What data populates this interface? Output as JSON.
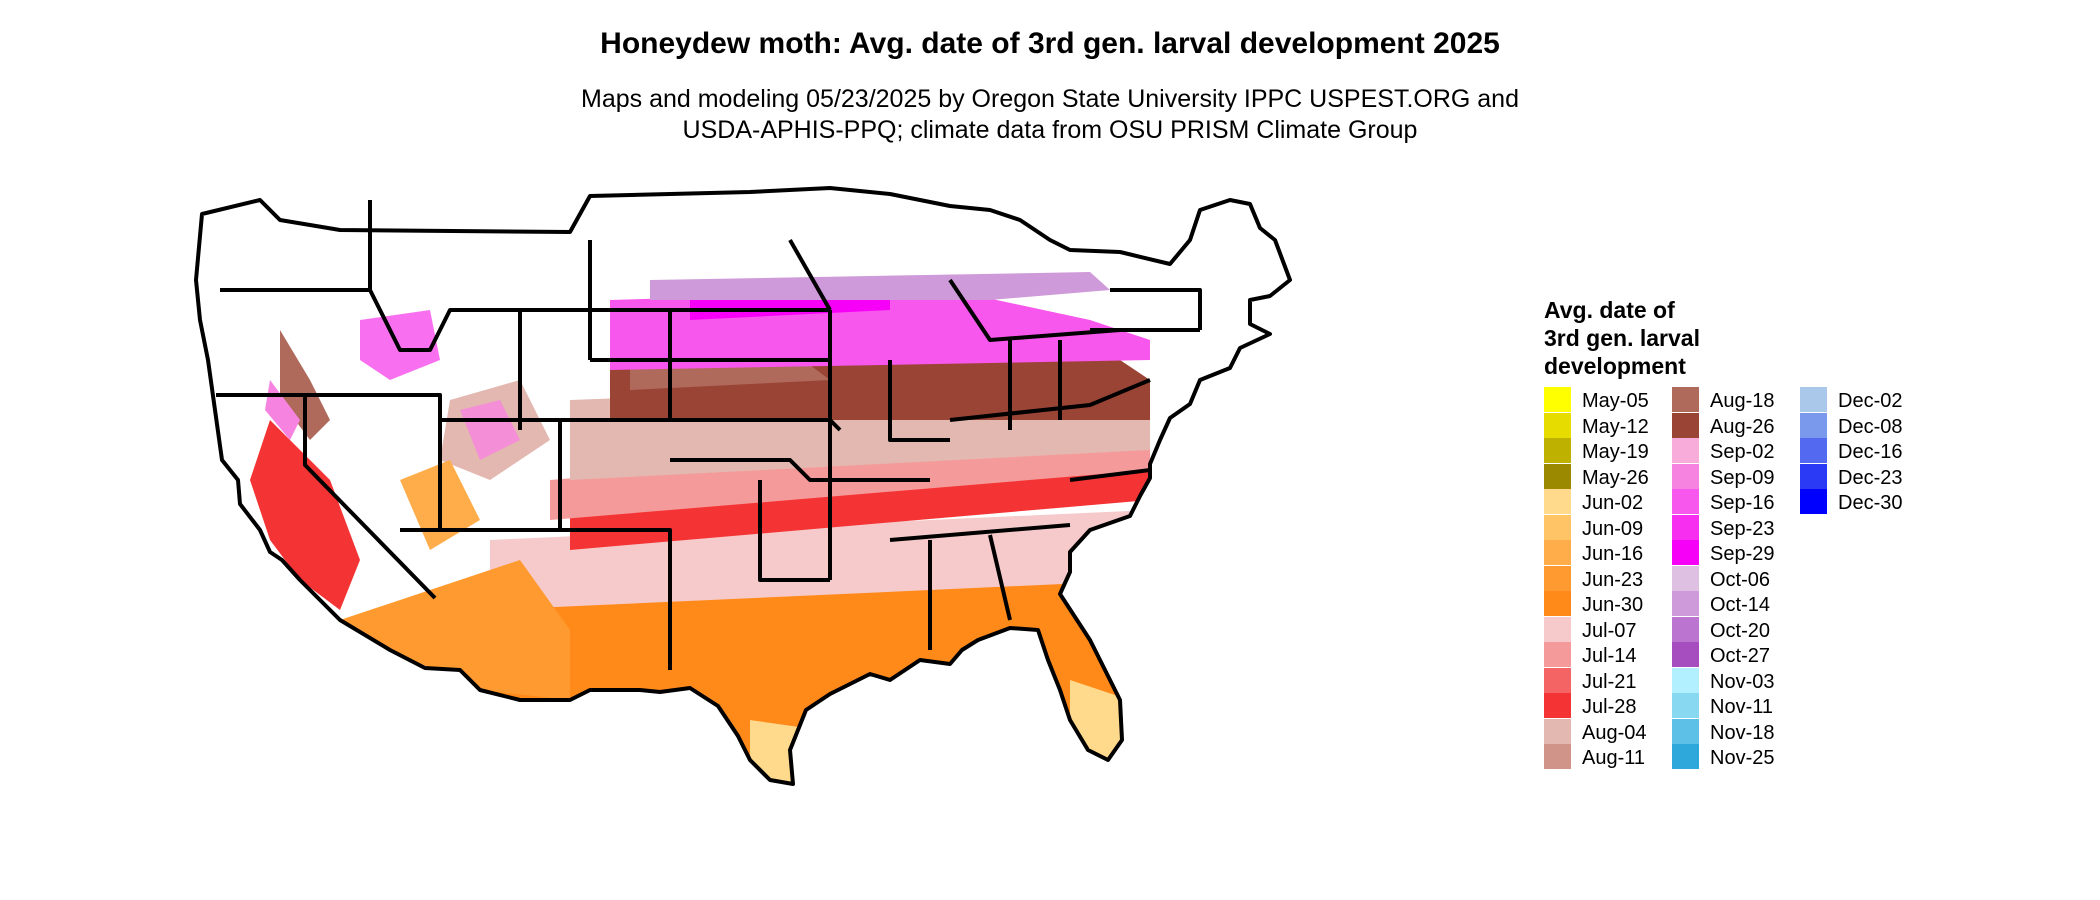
{
  "title": "Honeydew moth: Avg. date of 3rd gen. larval development 2025",
  "subtitle": {
    "line1": "Maps and modeling 05/23/2025 by Oregon State University IPPC USPEST.ORG and",
    "line2": "USDA-APHIS-PPQ; climate data from OSU PRISM Climate Group"
  },
  "legend": {
    "title": {
      "line1": "Avg. date of",
      "line2": "3rd gen. larval",
      "line3": "development"
    },
    "columns": [
      [
        {
          "label": "May-05",
          "color": "#ffff00"
        },
        {
          "label": "May-12",
          "color": "#e6dc00"
        },
        {
          "label": "May-19",
          "color": "#bfb100"
        },
        {
          "label": "May-26",
          "color": "#9b8a00"
        },
        {
          "label": "Jun-02",
          "color": "#ffd98c"
        },
        {
          "label": "Jun-09",
          "color": "#ffc466"
        },
        {
          "label": "Jun-16",
          "color": "#ffad4a"
        },
        {
          "label": "Jun-23",
          "color": "#ff9a30"
        },
        {
          "label": "Jun-30",
          "color": "#ff8a1a"
        },
        {
          "label": "Jul-07",
          "color": "#f6caca"
        },
        {
          "label": "Jul-14",
          "color": "#f59a9a"
        },
        {
          "label": "Jul-21",
          "color": "#f46464"
        },
        {
          "label": "Jul-28",
          "color": "#f43434"
        },
        {
          "label": "Aug-04",
          "color": "#e3b8b0"
        },
        {
          "label": "Aug-11",
          "color": "#d09488"
        }
      ],
      [
        {
          "label": "Aug-18",
          "color": "#b06a5c"
        },
        {
          "label": "Aug-26",
          "color": "#9a4436"
        },
        {
          "label": "Sep-02",
          "color": "#f7acd9"
        },
        {
          "label": "Sep-09",
          "color": "#f783e0"
        },
        {
          "label": "Sep-16",
          "color": "#f757ec"
        },
        {
          "label": "Sep-23",
          "color": "#f72ef0"
        },
        {
          "label": "Sep-29",
          "color": "#f700f7"
        },
        {
          "label": "Oct-06",
          "color": "#dec0e3"
        },
        {
          "label": "Oct-14",
          "color": "#cf9ad9"
        },
        {
          "label": "Oct-20",
          "color": "#bb74cf"
        },
        {
          "label": "Oct-27",
          "color": "#a64ebf"
        },
        {
          "label": "Nov-03",
          "color": "#b3f0ff"
        },
        {
          "label": "Nov-11",
          "color": "#88d8f2"
        },
        {
          "label": "Nov-18",
          "color": "#5dc0e6"
        },
        {
          "label": "Nov-25",
          "color": "#2ea8db"
        }
      ],
      [
        {
          "label": "Dec-02",
          "color": "#a9c8ea"
        },
        {
          "label": "Dec-08",
          "color": "#7b99ec"
        },
        {
          "label": "Dec-16",
          "color": "#5269f0"
        },
        {
          "label": "Dec-23",
          "color": "#2a3af5"
        },
        {
          "label": "Dec-30",
          "color": "#0000ff"
        }
      ]
    ]
  }
}
